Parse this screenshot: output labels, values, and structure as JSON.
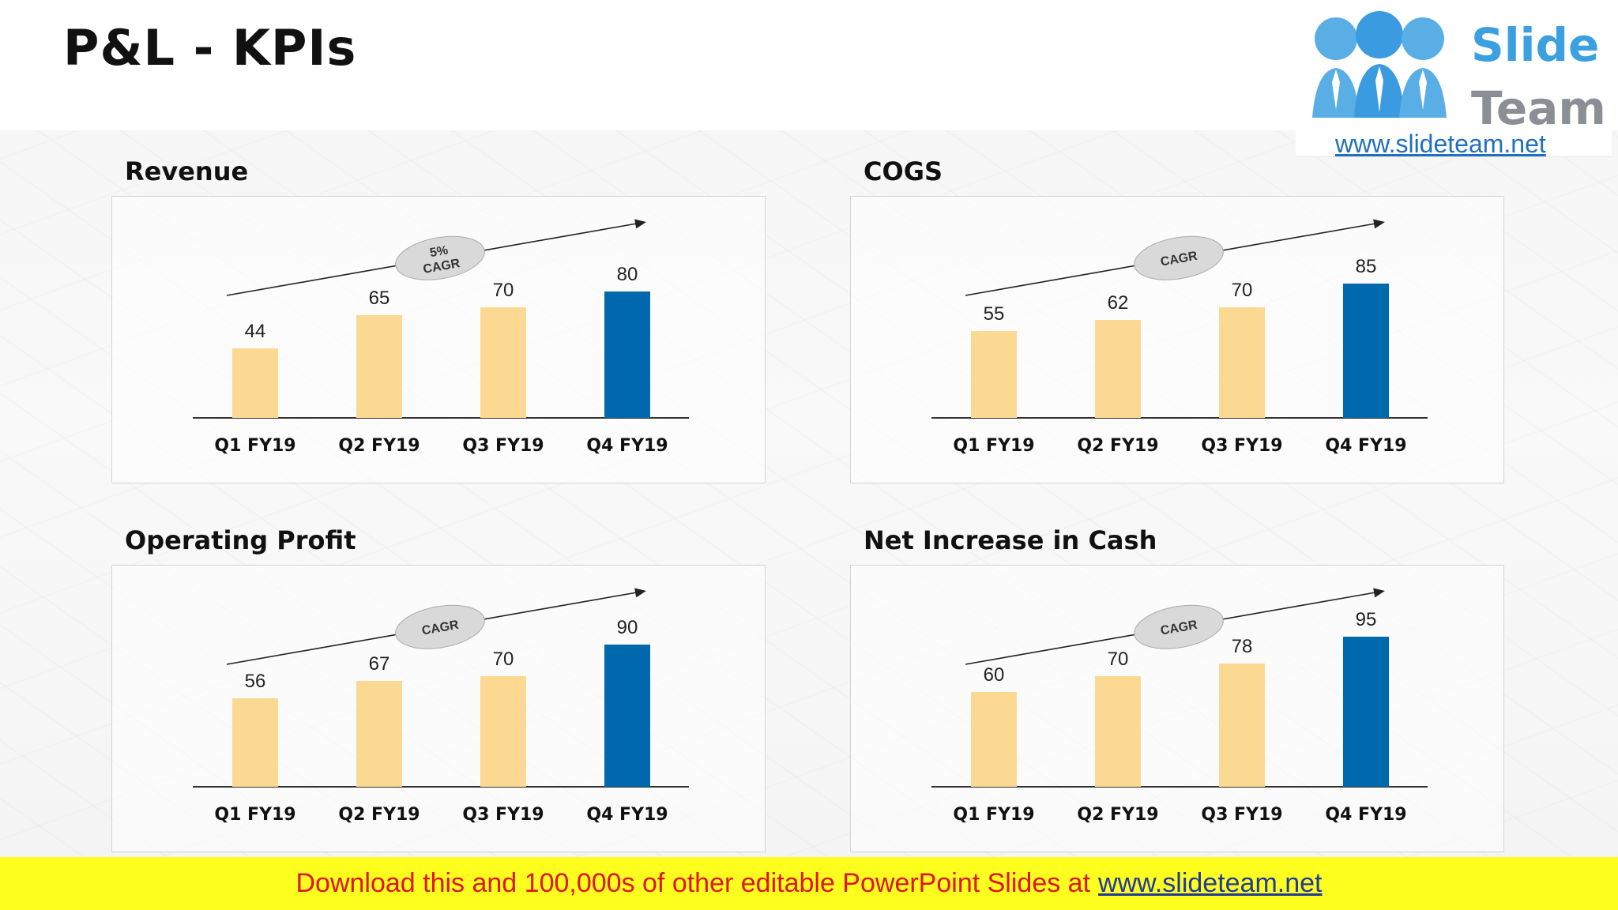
{
  "page": {
    "title": "P&L - KPIs"
  },
  "logo": {
    "line1": "Slide",
    "line2": "Team",
    "url": "www.slideteam.net"
  },
  "colors": {
    "bar_default": "#fcd993",
    "bar_highlight": "#0069ad",
    "footer_bg": "#ffff1f",
    "footer_text": "#e0141e",
    "footer_link": "#1f3a9e"
  },
  "chart_data": [
    {
      "type": "bar",
      "title": "Revenue",
      "categories": [
        "Q1 FY19",
        "Q2 FY19",
        "Q3 FY19",
        "Q4 FY19"
      ],
      "values": [
        44,
        65,
        70,
        80
      ],
      "highlight_index": 3,
      "cagr_label": [
        "5%",
        "CAGR"
      ]
    },
    {
      "type": "bar",
      "title": "COGS",
      "categories": [
        "Q1 FY19",
        "Q2 FY19",
        "Q3 FY19",
        "Q4 FY19"
      ],
      "values": [
        55,
        62,
        70,
        85
      ],
      "highlight_index": 3,
      "cagr_label": [
        "CAGR"
      ]
    },
    {
      "type": "bar",
      "title": "Operating Profit",
      "categories": [
        "Q1 FY19",
        "Q2 FY19",
        "Q3 FY19",
        "Q4 FY19"
      ],
      "values": [
        56,
        67,
        70,
        90
      ],
      "highlight_index": 3,
      "cagr_label": [
        "CAGR"
      ]
    },
    {
      "type": "bar",
      "title": "Net Increase in Cash",
      "categories": [
        "Q1 FY19",
        "Q2 FY19",
        "Q3 FY19",
        "Q4 FY19"
      ],
      "values": [
        60,
        70,
        78,
        95
      ],
      "highlight_index": 3,
      "cagr_label": [
        "CAGR"
      ]
    }
  ],
  "footer": {
    "text": "Download this and 100,000s of other editable PowerPoint Slides at",
    "link": "www.slideteam.net"
  }
}
